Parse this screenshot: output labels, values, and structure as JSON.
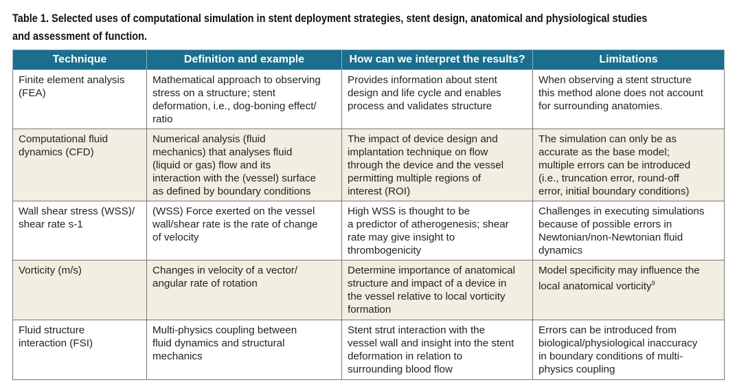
{
  "caption": "Table 1. Selected uses of computational simulation in stent deployment strategies, stent design, anatomical and physiological studies\nand assessment of function.",
  "headers": [
    "Technique",
    "Definition and example",
    "How can we interpret the results?",
    "Limitations"
  ],
  "rows": [
    {
      "technique": "Finite element analysis\n(FEA)",
      "definition": "Mathematical approach to observing\nstress on a structure; stent\ndeformation, i.e., dog-boning effect/\nratio",
      "interpretation": "Provides information about stent\ndesign and life cycle and enables\nprocess and validates structure",
      "limitations": "When observing a stent structure\nthis method alone does not account\nfor surrounding anatomies."
    },
    {
      "technique": "Computational fluid\ndynamics (CFD)",
      "definition": "Numerical analysis (fluid\nmechanics) that analyses fluid\n(liquid or gas) flow and its\ninteraction with the (vessel) surface\nas defined by boundary conditions",
      "interpretation": "The impact of device design and\nimplantation technique on flow\nthrough the device and the vessel\npermitting multiple regions of\ninterest (ROI)",
      "limitations": "The simulation can only be as\naccurate as the base model;\nmultiple errors can be introduced\n(i.e., truncation error, round-off\nerror, initial boundary conditions)"
    },
    {
      "technique": "Wall shear stress (WSS)/\nshear rate s-1",
      "definition": "(WSS) Force exerted on the vessel\nwall/shear rate is the rate of change\nof velocity",
      "interpretation": "High WSS is thought to be\na predictor of atherogenesis; shear\nrate may give insight to\nthrombogenicity",
      "limitations": "Challenges in executing simulations\nbecause of possible errors in\nNewtonian/non-Newtonian fluid\ndynamics"
    },
    {
      "technique": "Vorticity (m/s)",
      "definition": "Changes in velocity of a vector/\nangular rate of rotation",
      "interpretation": "Determine importance of anatomical\nstructure and impact of a device in\nthe vessel relative to local vorticity\nformation",
      "limitations": "Model specificity may influence the\nlocal anatomical vorticity",
      "limitations_sup": "9"
    },
    {
      "technique": "Fluid structure\ninteraction (FSI)",
      "definition": "Multi-physics coupling between\nfluid dynamics and structural\nmechanics",
      "interpretation": "Stent strut interaction with the\nvessel wall and insight into the stent\ndeformation in relation to\nsurrounding blood flow",
      "limitations": "Errors can be introduced from\nbiological/physiological inaccuracy\nin boundary conditions of multi-\nphysics coupling"
    }
  ],
  "colors": {
    "header_bg": "#1b6e8d",
    "alt_row_bg": "#f2eee2"
  }
}
